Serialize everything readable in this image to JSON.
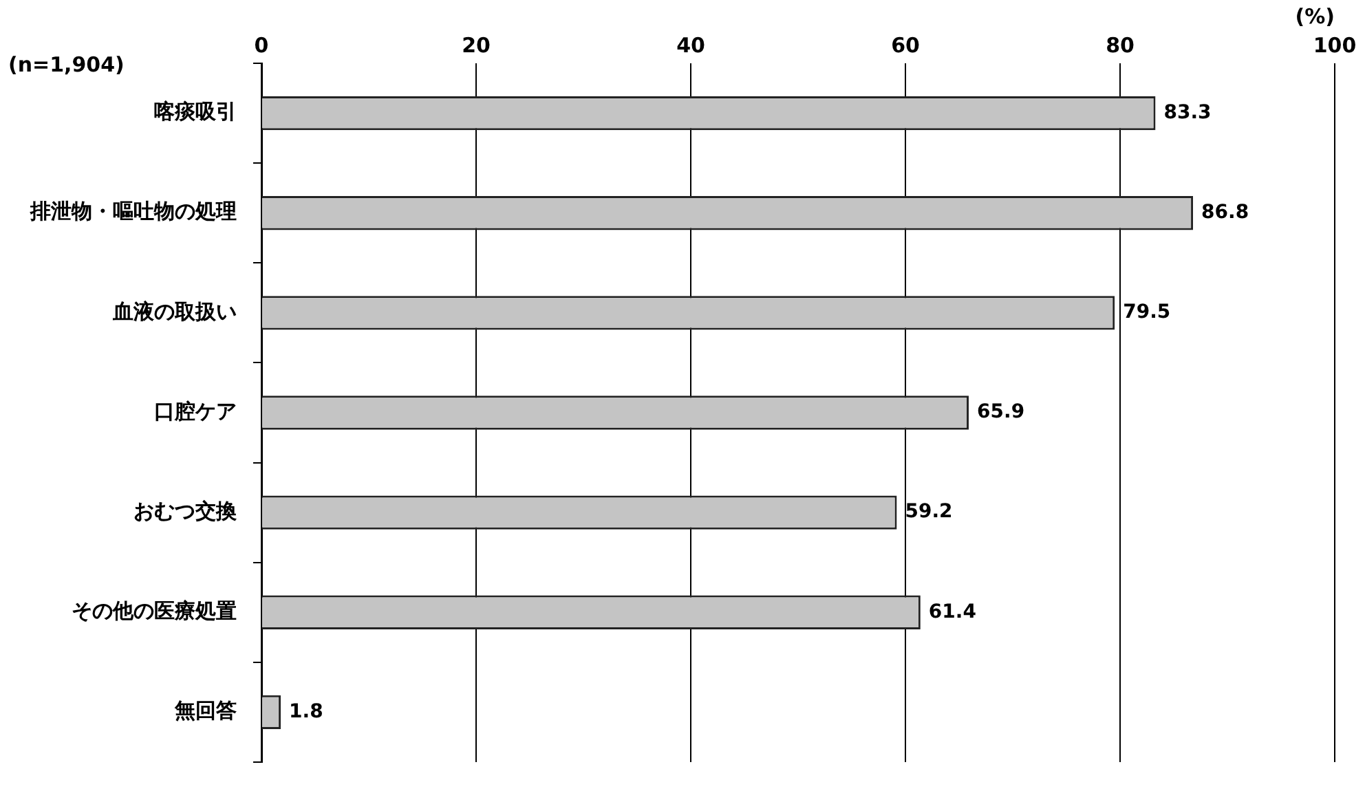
{
  "chart_data": {
    "type": "bar",
    "orientation": "horizontal",
    "xlabel": "(%)",
    "annotations": [
      "(n=1,904)"
    ],
    "categories": [
      "喀痰吸引",
      "排泄物・嘔吐物の処理",
      "血液の取扱い",
      "口腔ケア",
      "おむつ交換",
      "その他の医療処置",
      "無回答"
    ],
    "values": [
      83.3,
      86.8,
      79.5,
      65.9,
      59.2,
      61.4,
      1.8
    ],
    "color": "#c4c4c4",
    "xlim": [
      0,
      100
    ],
    "xticks": [
      0,
      20,
      40,
      60,
      80,
      100
    ],
    "grid": "x",
    "data_labels": true
  }
}
